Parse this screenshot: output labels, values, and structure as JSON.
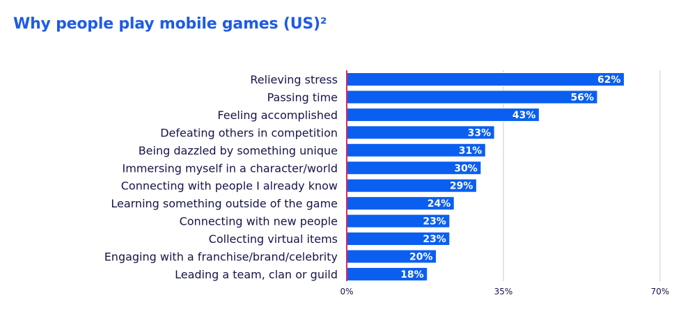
{
  "colors": {
    "title": "#1e5be6",
    "bar": "#0a5ff0",
    "bar_border": "#ffffff",
    "axis": "#e0265e",
    "grid": "#c8c8c8",
    "label": "#14144a",
    "value_text": "#ffffff"
  },
  "chart_data": {
    "type": "bar",
    "orientation": "horizontal",
    "title": "Why people play mobile games (US)²",
    "categories": [
      "Relieving stress",
      "Passing time",
      "Feeling accomplished",
      "Defeating others in competition",
      "Being dazzled by something unique",
      "Immersing myself in a character/world",
      "Connecting with people I already know",
      "Learning something outside of the game",
      "Connecting with new people",
      "Collecting virtual items",
      "Engaging with a franchise/brand/celebrity",
      "Leading a team, clan or guild"
    ],
    "values": [
      62,
      56,
      43,
      33,
      31,
      30,
      29,
      24,
      23,
      23,
      20,
      18
    ],
    "value_labels": [
      "62%",
      "56%",
      "43%",
      "33%",
      "31%",
      "30%",
      "29%",
      "24%",
      "23%",
      "23%",
      "20%",
      "18%"
    ],
    "xlim": [
      0,
      70
    ],
    "ticks": [
      0,
      35,
      70
    ],
    "tick_labels": [
      "0%",
      "35%",
      "70%"
    ],
    "grid": true,
    "legend": "none"
  }
}
